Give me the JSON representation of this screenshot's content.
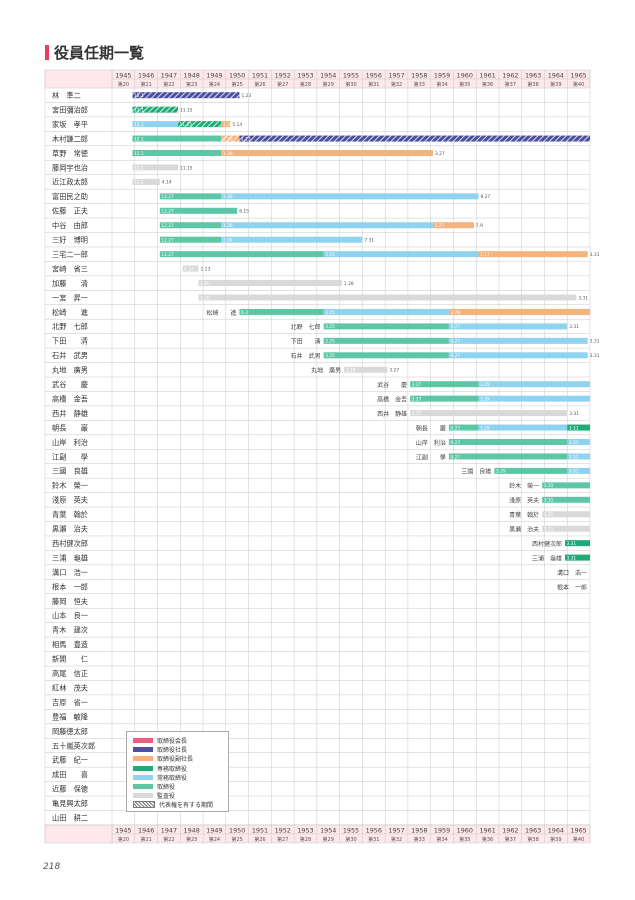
{
  "page_title": "役員任期一覧",
  "page_number": "218",
  "years": [
    "1945",
    "1946",
    "1947",
    "1948",
    "1949",
    "1950",
    "1951",
    "1952",
    "1953",
    "1954",
    "1955",
    "1956",
    "1957",
    "1958",
    "1959",
    "1960",
    "1961",
    "1962",
    "1963",
    "1964",
    "1965"
  ],
  "terms": [
    "第20",
    "第21",
    "第22",
    "第23",
    "第24",
    "第25",
    "第26",
    "第27",
    "第28",
    "第29",
    "第30",
    "第31",
    "第32",
    "第33",
    "第34",
    "第35",
    "第36",
    "第37",
    "第38",
    "第39",
    "第40"
  ],
  "colors": {
    "chairman": "#e8607e",
    "president": "#4c4f9e",
    "vice_president": "#f5b27a",
    "senior_managing": "#1faa78",
    "managing": "#8fd3ee",
    "director": "#5cc6a6",
    "auditor": "#d9d9d9",
    "header_bg": "#fde8ec",
    "grid": "#c8c8c8"
  },
  "legend": [
    {
      "label": "取締役会長",
      "color": "chairman"
    },
    {
      "label": "取締役社長",
      "color": "president"
    },
    {
      "label": "取締役副社長",
      "color": "vice_president"
    },
    {
      "label": "専務取締役",
      "color": "senior_managing"
    },
    {
      "label": "常務取締役",
      "color": "managing"
    },
    {
      "label": "取締役",
      "color": "director"
    },
    {
      "label": "監査役",
      "color": "auditor"
    },
    {
      "label": "代表権を有する期間",
      "color": "hatch"
    }
  ],
  "executives": [
    {
      "name": "林　準二",
      "segments": [
        {
          "from": 1945.9,
          "to": 1950.6,
          "role": "president",
          "hatch": true,
          "label": "12.1",
          "end_label": "1.23"
        }
      ]
    },
    {
      "name": "宮田彌治郎",
      "segments": [
        {
          "from": 1945.9,
          "to": 1947.9,
          "role": "senior_managing",
          "hatch": true,
          "label": "12.1",
          "end_label": "11.15"
        }
      ]
    },
    {
      "name": "家坂　孝平",
      "segments": [
        {
          "from": 1945.9,
          "to": 1947.9,
          "role": "managing",
          "label": "12.1"
        },
        {
          "from": 1947.9,
          "to": 1949.8,
          "role": "senior_managing",
          "hatch": true,
          "label": "11.15"
        },
        {
          "from": 1949.8,
          "to": 1950.2,
          "role": "vice_president",
          "label": "1.30",
          "end_label": "5.14"
        }
      ]
    },
    {
      "name": "木村謙二郎",
      "segments": [
        {
          "from": 1945.9,
          "to": 1949.8,
          "role": "director",
          "label": "12.1"
        },
        {
          "from": 1949.8,
          "to": 1950.6,
          "role": "vice_president",
          "hatch": true,
          "label": "1.30"
        },
        {
          "from": 1950.6,
          "to": 1966,
          "role": "president",
          "hatch": true,
          "label": "1.23"
        }
      ]
    },
    {
      "name": "草野　常徳",
      "segments": [
        {
          "from": 1945.9,
          "to": 1949.8,
          "role": "director",
          "label": "12.1"
        },
        {
          "from": 1949.8,
          "to": 1959.1,
          "role": "vice_president",
          "label": "1.30",
          "end_label": "3.27"
        }
      ]
    },
    {
      "name": "藤岡宇也治",
      "segments": [
        {
          "from": 1945.9,
          "to": 1947.9,
          "role": "auditor",
          "label": "12.1",
          "end_label": "11.15"
        }
      ]
    },
    {
      "name": "近江政太郎",
      "segments": [
        {
          "from": 1945.9,
          "to": 1947.1,
          "role": "auditor",
          "label": "12.1",
          "end_label": "4.14"
        }
      ]
    },
    {
      "name": "富田民之助",
      "segments": [
        {
          "from": 1947.1,
          "to": 1949.8,
          "role": "director",
          "label": "12.27"
        },
        {
          "from": 1949.8,
          "to": 1961.1,
          "role": "managing",
          "label": "1.30",
          "end_label": "9.27"
        }
      ]
    },
    {
      "name": "佐藤　正夫",
      "segments": [
        {
          "from": 1947.1,
          "to": 1950.5,
          "role": "director",
          "label": "12.27",
          "end_label": "6.15"
        }
      ]
    },
    {
      "name": "中谷　由郎",
      "segments": [
        {
          "from": 1947.1,
          "to": 1949.8,
          "role": "director",
          "label": "12.27"
        },
        {
          "from": 1949.8,
          "to": 1959.1,
          "role": "managing",
          "label": "1.30"
        },
        {
          "from": 1959.1,
          "to": 1960.9,
          "role": "vice_president",
          "label": "3.27",
          "end_label": "7.9"
        }
      ]
    },
    {
      "name": "三好　博明",
      "segments": [
        {
          "from": 1947.1,
          "to": 1949.8,
          "role": "director",
          "label": "12.27"
        },
        {
          "from": 1949.8,
          "to": 1956.0,
          "role": "managing",
          "label": "1.30",
          "end_label": "7.31"
        }
      ]
    },
    {
      "name": "三宅二一郎",
      "segments": [
        {
          "from": 1947.1,
          "to": 1954.3,
          "role": "director",
          "label": "12.27"
        },
        {
          "from": 1954.3,
          "to": 1961.1,
          "role": "managing",
          "label": "3.25"
        },
        {
          "from": 1961.1,
          "to": 1965.9,
          "role": "vice_president",
          "label": "1.17",
          "end_label": "3.31"
        }
      ]
    },
    {
      "name": "宮崎　省三",
      "segments": [
        {
          "from": 1948.1,
          "to": 1948.8,
          "role": "auditor",
          "label": "4.14",
          "end_label": "1.13"
        }
      ]
    },
    {
      "name": "加藤　　清",
      "segments": [
        {
          "from": 1948.8,
          "to": 1955.1,
          "role": "auditor",
          "label": "1.30",
          "end_label": "1.28"
        }
      ]
    },
    {
      "name": "一宮　昇一",
      "segments": [
        {
          "from": 1948.8,
          "to": 1965.4,
          "role": "auditor",
          "label": "1.30",
          "end_label": "3.31"
        }
      ]
    },
    {
      "name": "松崎　　進",
      "tag": {
        "x": 1950.6,
        "text": "松崎　　進"
      },
      "segments": [
        {
          "from": 1950.6,
          "to": 1954.3,
          "role": "director",
          "label": "6.3"
        },
        {
          "from": 1954.3,
          "to": 1959.8,
          "role": "managing",
          "label": "3.25"
        },
        {
          "from": 1959.8,
          "to": 1966,
          "role": "vice_president",
          "label": "3.29"
        }
      ]
    },
    {
      "name": "北野　七郎",
      "tag": {
        "x": 1954.3,
        "text": "北野　七郎"
      },
      "segments": [
        {
          "from": 1954.3,
          "to": 1959.8,
          "role": "director",
          "label": "3.25"
        },
        {
          "from": 1959.8,
          "to": 1965.0,
          "role": "managing",
          "label": "9.27",
          "end_label": "3.31"
        }
      ]
    },
    {
      "name": "下田　　清",
      "tag": {
        "x": 1954.3,
        "text": "下田　　清"
      },
      "segments": [
        {
          "from": 1954.3,
          "to": 1959.8,
          "role": "director",
          "label": "3.25"
        },
        {
          "from": 1959.8,
          "to": 1965.9,
          "role": "managing",
          "label": "9.27",
          "end_label": "3.31"
        }
      ]
    },
    {
      "name": "石井　武男",
      "tag": {
        "x": 1954.3,
        "text": "石井　武男"
      },
      "segments": [
        {
          "from": 1954.3,
          "to": 1959.8,
          "role": "director",
          "label": "3.25"
        },
        {
          "from": 1959.8,
          "to": 1965.9,
          "role": "managing",
          "label": "9.27",
          "end_label": "3.31"
        }
      ]
    },
    {
      "name": "丸地　廣男",
      "tag": {
        "x": 1955.2,
        "text": "丸地　廣男"
      },
      "segments": [
        {
          "from": 1955.2,
          "to": 1957.1,
          "role": "auditor",
          "label": "3.28",
          "end_label": "3.27"
        }
      ]
    },
    {
      "name": "武谷　　慶",
      "tag": {
        "x": 1958.1,
        "text": "武谷　　慶"
      },
      "segments": [
        {
          "from": 1958.1,
          "to": 1961.1,
          "role": "director",
          "label": "3.27"
        },
        {
          "from": 1961.1,
          "to": 1966,
          "role": "managing",
          "label": "3.29"
        }
      ]
    },
    {
      "name": "高橋　金吾",
      "tag": {
        "x": 1958.1,
        "text": "高橋　金吾"
      },
      "segments": [
        {
          "from": 1958.1,
          "to": 1961.1,
          "role": "director",
          "label": "3.27"
        },
        {
          "from": 1961.1,
          "to": 1966,
          "role": "managing",
          "label": "3.29"
        }
      ]
    },
    {
      "name": "西井　静雄",
      "tag": {
        "x": 1958.1,
        "text": "西井　静雄"
      },
      "segments": [
        {
          "from": 1958.1,
          "to": 1965.0,
          "role": "auditor",
          "label": "3.27",
          "end_label": "3.31"
        }
      ]
    },
    {
      "name": "朝長　　巖",
      "tag": {
        "x": 1959.8,
        "text": "朝長　　巖"
      },
      "segments": [
        {
          "from": 1959.8,
          "to": 1961.1,
          "role": "director",
          "label": "9.27"
        },
        {
          "from": 1961.1,
          "to": 1965.0,
          "role": "managing",
          "label": "3.29"
        },
        {
          "from": 1965.0,
          "to": 1966,
          "role": "senior_managing",
          "label": "3.31"
        }
      ]
    },
    {
      "name": "山岸　利治",
      "tag": {
        "x": 1959.8,
        "text": "山岸　利治"
      },
      "segments": [
        {
          "from": 1959.8,
          "to": 1965.0,
          "role": "director",
          "label": "9.27"
        },
        {
          "from": 1965.0,
          "to": 1966,
          "role": "managing",
          "label": "3.31"
        }
      ]
    },
    {
      "name": "江副　　學",
      "tag": {
        "x": 1959.8,
        "text": "江副　　學"
      },
      "segments": [
        {
          "from": 1959.8,
          "to": 1965.0,
          "role": "director",
          "label": "9.27"
        },
        {
          "from": 1965.0,
          "to": 1966,
          "role": "managing",
          "label": "3.31"
        }
      ]
    },
    {
      "name": "三國　良雄",
      "tag": {
        "x": 1961.8,
        "text": "三國　良雄"
      },
      "segments": [
        {
          "from": 1961.8,
          "to": 1965.0,
          "role": "director",
          "label": "3.29"
        },
        {
          "from": 1965.0,
          "to": 1966,
          "role": "managing",
          "label": "3.31"
        }
      ]
    },
    {
      "name": "鈴木　榮一",
      "tag": {
        "x": 1963.9,
        "text": "鈴木　榮一"
      },
      "segments": [
        {
          "from": 1963.9,
          "to": 1966,
          "role": "director",
          "label": "3.31"
        }
      ]
    },
    {
      "name": "淺原　英夫",
      "tag": {
        "x": 1963.9,
        "text": "淺原　英夫"
      },
      "segments": [
        {
          "from": 1963.9,
          "to": 1966,
          "role": "director",
          "label": "3.31"
        }
      ]
    },
    {
      "name": "青葉　翰於",
      "tag": {
        "x": 1963.9,
        "text": "青葉　翰於"
      },
      "segments": [
        {
          "from": 1963.9,
          "to": 1966,
          "role": "auditor",
          "label": "3.31"
        }
      ]
    },
    {
      "name": "黒瀬　治夫",
      "tag": {
        "x": 1963.9,
        "text": "黒瀬　治夫"
      },
      "segments": [
        {
          "from": 1963.9,
          "to": 1966,
          "role": "auditor",
          "label": "3.31"
        }
      ]
    },
    {
      "name": "西村健次郎",
      "tag": {
        "x": 1964.9,
        "text": "西村健次郎"
      },
      "segments": [
        {
          "from": 1964.9,
          "to": 1966,
          "role": "senior_managing",
          "label": "3.31"
        }
      ]
    },
    {
      "name": "三浦　龜雄",
      "tag": {
        "x": 1964.9,
        "text": "三浦　龜雄"
      },
      "segments": [
        {
          "from": 1964.9,
          "to": 1966,
          "role": "senior_managing",
          "label": "3.31"
        }
      ]
    },
    {
      "name": "溝口　浩一",
      "tag": {
        "x": 1966,
        "text": "溝口　浩一"
      },
      "segments": []
    },
    {
      "name": "根本　一郎",
      "tag": {
        "x": 1966,
        "text": "根本　一郎"
      },
      "segments": []
    },
    {
      "name": "藤岡　恒夫",
      "segments": []
    },
    {
      "name": "山本　良一",
      "segments": []
    },
    {
      "name": "青木　建次",
      "segments": []
    },
    {
      "name": "相馬　豊造",
      "segments": []
    },
    {
      "name": "新開　　仁",
      "segments": []
    },
    {
      "name": "高尾　信正",
      "segments": []
    },
    {
      "name": "紅林　茂夫",
      "segments": []
    },
    {
      "name": "吉原　省一",
      "segments": []
    },
    {
      "name": "豊福　敏隆",
      "segments": []
    },
    {
      "name": "岡藤徳太郎",
      "segments": []
    },
    {
      "name": "五十嵐英次郎",
      "segments": []
    },
    {
      "name": "武藤　紀一",
      "segments": []
    },
    {
      "name": "成田　　喜",
      "segments": []
    },
    {
      "name": "近藤　保徳",
      "segments": []
    },
    {
      "name": "亀見興太郎",
      "segments": []
    },
    {
      "name": "山田　耕二",
      "segments": []
    }
  ]
}
